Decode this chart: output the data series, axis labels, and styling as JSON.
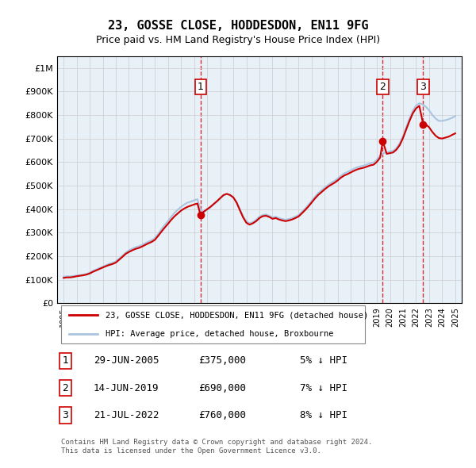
{
  "title": "23, GOSSE CLOSE, HODDESDON, EN11 9FG",
  "subtitle": "Price paid vs. HM Land Registry's House Price Index (HPI)",
  "hpi_color": "#aac4e0",
  "price_color": "#cc0000",
  "marker_color": "#cc0000",
  "bg_color": "#e8f0f8",
  "plot_bg": "#ffffff",
  "grid_color": "#cccccc",
  "ylim": [
    0,
    1050000
  ],
  "yticks": [
    0,
    100000,
    200000,
    300000,
    400000,
    500000,
    600000,
    700000,
    800000,
    900000,
    1000000
  ],
  "ytick_labels": [
    "£0",
    "£100K",
    "£200K",
    "£300K",
    "£400K",
    "£500K",
    "£600K",
    "£700K",
    "£800K",
    "£900K",
    "£1M"
  ],
  "xlim_start": 1994.5,
  "xlim_end": 2025.5,
  "xticks": [
    1995,
    1996,
    1997,
    1998,
    1999,
    2000,
    2001,
    2002,
    2003,
    2004,
    2005,
    2006,
    2007,
    2008,
    2009,
    2010,
    2011,
    2012,
    2013,
    2014,
    2015,
    2016,
    2017,
    2018,
    2019,
    2020,
    2021,
    2022,
    2023,
    2024,
    2025
  ],
  "sale_dates": [
    2005.49,
    2019.45,
    2022.55
  ],
  "sale_prices": [
    375000,
    690000,
    760000
  ],
  "sale_labels": [
    "1",
    "2",
    "3"
  ],
  "sale_info": [
    {
      "label": "1",
      "date": "29-JUN-2005",
      "price": "£375,000",
      "hpi": "5% ↓ HPI"
    },
    {
      "label": "2",
      "date": "14-JUN-2019",
      "price": "£690,000",
      "hpi": "7% ↓ HPI"
    },
    {
      "label": "3",
      "date": "21-JUL-2022",
      "price": "£760,000",
      "hpi": "8% ↓ HPI"
    }
  ],
  "legend_line1": "23, GOSSE CLOSE, HODDESDON, EN11 9FG (detached house)",
  "legend_line2": "HPI: Average price, detached house, Broxbourne",
  "footer": "Contains HM Land Registry data © Crown copyright and database right 2024.\nThis data is licensed under the Open Government Licence v3.0.",
  "hpi_data_x": [
    1995.0,
    1995.25,
    1995.5,
    1995.75,
    1996.0,
    1996.25,
    1996.5,
    1996.75,
    1997.0,
    1997.25,
    1997.5,
    1997.75,
    1998.0,
    1998.25,
    1998.5,
    1998.75,
    1999.0,
    1999.25,
    1999.5,
    1999.75,
    2000.0,
    2000.25,
    2000.5,
    2000.75,
    2001.0,
    2001.25,
    2001.5,
    2001.75,
    2002.0,
    2002.25,
    2002.5,
    2002.75,
    2003.0,
    2003.25,
    2003.5,
    2003.75,
    2004.0,
    2004.25,
    2004.5,
    2004.75,
    2005.0,
    2005.25,
    2005.5,
    2005.75,
    2006.0,
    2006.25,
    2006.5,
    2006.75,
    2007.0,
    2007.25,
    2007.5,
    2007.75,
    2008.0,
    2008.25,
    2008.5,
    2008.75,
    2009.0,
    2009.25,
    2009.5,
    2009.75,
    2010.0,
    2010.25,
    2010.5,
    2010.75,
    2011.0,
    2011.25,
    2011.5,
    2011.75,
    2012.0,
    2012.25,
    2012.5,
    2012.75,
    2013.0,
    2013.25,
    2013.5,
    2013.75,
    2014.0,
    2014.25,
    2014.5,
    2014.75,
    2015.0,
    2015.25,
    2015.5,
    2015.75,
    2016.0,
    2016.25,
    2016.5,
    2016.75,
    2017.0,
    2017.25,
    2017.5,
    2017.75,
    2018.0,
    2018.25,
    2018.5,
    2018.75,
    2019.0,
    2019.25,
    2019.5,
    2019.75,
    2020.0,
    2020.25,
    2020.5,
    2020.75,
    2021.0,
    2021.25,
    2021.5,
    2021.75,
    2022.0,
    2022.25,
    2022.5,
    2022.75,
    2023.0,
    2023.25,
    2023.5,
    2023.75,
    2024.0,
    2024.25,
    2024.5,
    2024.75,
    2025.0
  ],
  "hpi_data_y": [
    113000,
    115000,
    114000,
    116000,
    118000,
    120000,
    122000,
    125000,
    130000,
    138000,
    144000,
    150000,
    156000,
    162000,
    168000,
    172000,
    178000,
    190000,
    202000,
    215000,
    225000,
    232000,
    238000,
    242000,
    248000,
    255000,
    262000,
    268000,
    278000,
    295000,
    315000,
    333000,
    350000,
    368000,
    385000,
    398000,
    410000,
    420000,
    428000,
    432000,
    438000,
    442000,
    396000,
    388000,
    398000,
    408000,
    420000,
    432000,
    446000,
    458000,
    465000,
    460000,
    450000,
    430000,
    400000,
    370000,
    348000,
    340000,
    345000,
    355000,
    368000,
    375000,
    378000,
    372000,
    365000,
    368000,
    362000,
    358000,
    355000,
    358000,
    362000,
    368000,
    375000,
    388000,
    402000,
    418000,
    435000,
    452000,
    468000,
    480000,
    492000,
    502000,
    512000,
    520000,
    530000,
    542000,
    552000,
    558000,
    565000,
    572000,
    578000,
    582000,
    585000,
    590000,
    595000,
    598000,
    610000,
    628000,
    638000,
    642000,
    645000,
    648000,
    660000,
    680000,
    710000,
    748000,
    785000,
    818000,
    840000,
    850000,
    845000,
    835000,
    820000,
    800000,
    785000,
    775000,
    775000,
    778000,
    782000,
    788000,
    795000
  ],
  "price_line_x": [
    1995.0,
    1995.25,
    1995.5,
    1995.75,
    1996.0,
    1996.25,
    1996.5,
    1996.75,
    1997.0,
    1997.25,
    1997.5,
    1997.75,
    1998.0,
    1998.25,
    1998.5,
    1998.75,
    1999.0,
    1999.25,
    1999.5,
    1999.75,
    2000.0,
    2000.25,
    2000.5,
    2000.75,
    2001.0,
    2001.25,
    2001.5,
    2001.75,
    2002.0,
    2002.25,
    2002.5,
    2002.75,
    2003.0,
    2003.25,
    2003.5,
    2003.75,
    2004.0,
    2004.25,
    2004.5,
    2004.75,
    2005.0,
    2005.25,
    2005.49,
    2005.75,
    2006.0,
    2006.25,
    2006.5,
    2006.75,
    2007.0,
    2007.25,
    2007.5,
    2007.75,
    2008.0,
    2008.25,
    2008.5,
    2008.75,
    2009.0,
    2009.25,
    2009.5,
    2009.75,
    2010.0,
    2010.25,
    2010.5,
    2010.75,
    2011.0,
    2011.25,
    2011.5,
    2011.75,
    2012.0,
    2012.25,
    2012.5,
    2012.75,
    2013.0,
    2013.25,
    2013.5,
    2013.75,
    2014.0,
    2014.25,
    2014.5,
    2014.75,
    2015.0,
    2015.25,
    2015.5,
    2015.75,
    2016.0,
    2016.25,
    2016.5,
    2016.75,
    2017.0,
    2017.25,
    2017.5,
    2017.75,
    2018.0,
    2018.25,
    2018.5,
    2018.75,
    2019.0,
    2019.25,
    2019.45,
    2019.75,
    2020.0,
    2020.25,
    2020.5,
    2020.75,
    2021.0,
    2021.25,
    2021.5,
    2021.75,
    2022.0,
    2022.25,
    2022.55,
    2022.75,
    2023.0,
    2023.25,
    2023.5,
    2023.75,
    2024.0,
    2024.25,
    2024.5,
    2024.75,
    2025.0
  ],
  "price_line_y": [
    108000,
    110000,
    110000,
    112000,
    115000,
    117000,
    119000,
    122000,
    127000,
    134000,
    140000,
    146000,
    152000,
    158000,
    163000,
    167000,
    173000,
    185000,
    197000,
    210000,
    218000,
    225000,
    231000,
    235000,
    241000,
    248000,
    255000,
    261000,
    270000,
    287000,
    305000,
    322000,
    338000,
    355000,
    370000,
    382000,
    394000,
    403000,
    410000,
    415000,
    420000,
    424000,
    375000,
    390000,
    400000,
    410000,
    422000,
    434000,
    447000,
    460000,
    465000,
    460000,
    450000,
    428000,
    396000,
    365000,
    342000,
    334000,
    340000,
    349000,
    362000,
    370000,
    372000,
    367000,
    359000,
    362000,
    356000,
    352000,
    349000,
    352000,
    356000,
    362000,
    369000,
    382000,
    396000,
    411000,
    428000,
    445000,
    460000,
    472000,
    484000,
    495000,
    504000,
    512000,
    522000,
    534000,
    543000,
    549000,
    556000,
    563000,
    569000,
    573000,
    576000,
    581000,
    586000,
    589000,
    601000,
    619000,
    690000,
    635000,
    638000,
    641000,
    653000,
    672000,
    702000,
    739000,
    775000,
    807000,
    828000,
    839000,
    760000,
    760000,
    748000,
    728000,
    712000,
    702000,
    700000,
    704000,
    708000,
    715000,
    722000
  ]
}
